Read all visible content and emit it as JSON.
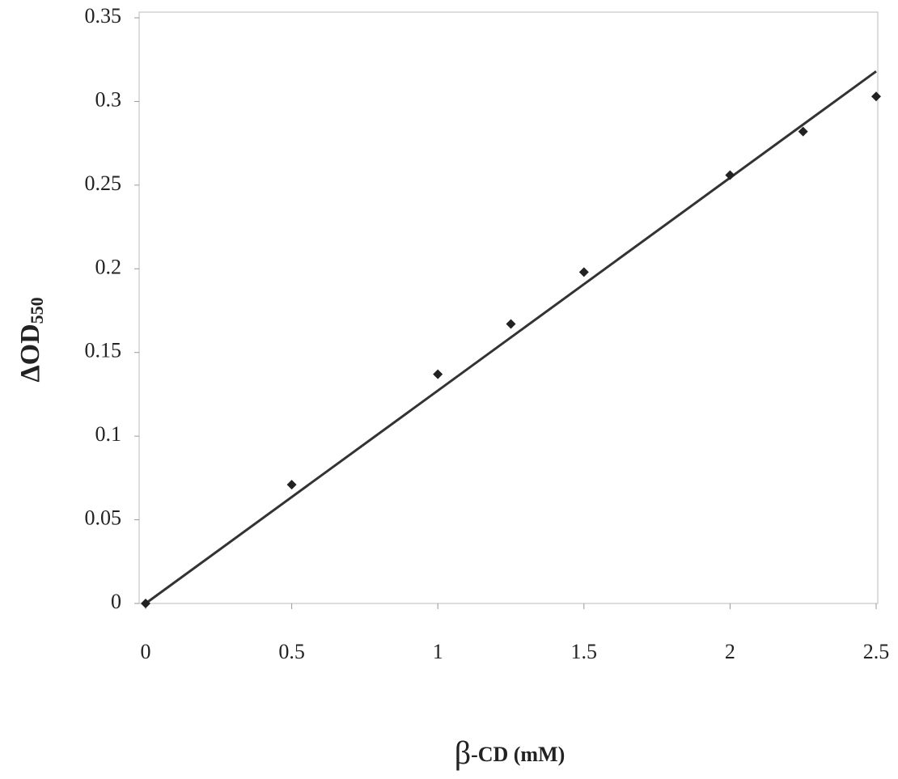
{
  "chart_data": {
    "type": "scatter",
    "xlabel_parts": [
      "β",
      "-CD (mM)"
    ],
    "ylabel_parts": [
      "ΔOD",
      "550"
    ],
    "x": [
      0,
      0.5,
      1,
      1.25,
      1.5,
      2,
      2.25,
      2.5
    ],
    "series": [
      {
        "color": "#222222",
        "values": [
          0,
          0.071,
          0.137,
          0.167,
          0.198,
          0.256,
          0.282,
          0.303
        ]
      }
    ],
    "trendline": {
      "color": "#333333",
      "x": [
        0,
        2.5
      ],
      "values": [
        0,
        0.318
      ]
    },
    "xlim": [
      0,
      2.5
    ],
    "ylim": [
      0,
      0.35
    ],
    "xticks": [
      0,
      0.5,
      1,
      1.5,
      2,
      2.5
    ],
    "yticks": [
      0,
      0.05,
      0.1,
      0.15,
      0.2,
      0.25,
      0.3,
      0.35
    ]
  }
}
